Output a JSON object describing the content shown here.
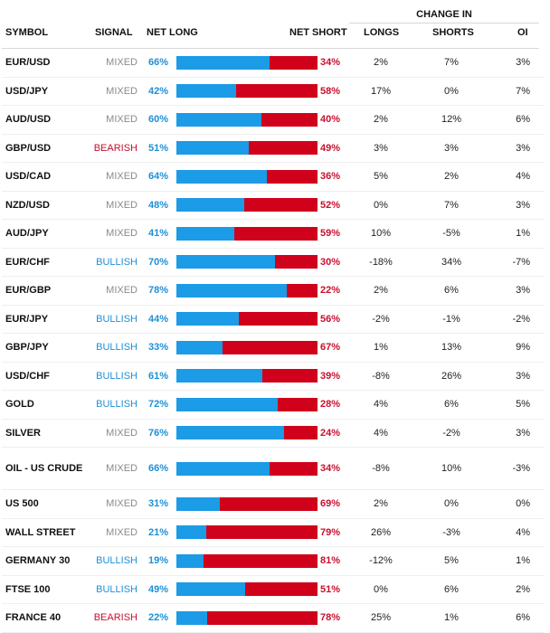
{
  "header": {
    "change_in": "CHANGE IN",
    "symbol": "SYMBOL",
    "signal": "SIGNAL",
    "net_long": "NET LONG",
    "net_short": "NET SHORT",
    "longs": "LONGS",
    "shorts": "SHORTS",
    "oi": "OI"
  },
  "colors": {
    "long_bar": "#1c9be6",
    "short_bar": "#d0021b",
    "bullish": "#1e90d6",
    "bearish": "#c8102e",
    "mixed": "#8a8a8a"
  },
  "rows": [
    {
      "symbol": "EUR/USD",
      "signal": "MIXED",
      "net_long": "66%",
      "net_short": "34%",
      "long_pct": 66,
      "longs": "2%",
      "shorts": "7%",
      "oi": "3%"
    },
    {
      "symbol": "USD/JPY",
      "signal": "MIXED",
      "net_long": "42%",
      "net_short": "58%",
      "long_pct": 42,
      "longs": "17%",
      "shorts": "0%",
      "oi": "7%"
    },
    {
      "symbol": "AUD/USD",
      "signal": "MIXED",
      "net_long": "60%",
      "net_short": "40%",
      "long_pct": 60,
      "longs": "2%",
      "shorts": "12%",
      "oi": "6%"
    },
    {
      "symbol": "GBP/USD",
      "signal": "BEARISH",
      "net_long": "51%",
      "net_short": "49%",
      "long_pct": 51,
      "longs": "3%",
      "shorts": "3%",
      "oi": "3%"
    },
    {
      "symbol": "USD/CAD",
      "signal": "MIXED",
      "net_long": "64%",
      "net_short": "36%",
      "long_pct": 64,
      "longs": "5%",
      "shorts": "2%",
      "oi": "4%"
    },
    {
      "symbol": "NZD/USD",
      "signal": "MIXED",
      "net_long": "48%",
      "net_short": "52%",
      "long_pct": 48,
      "longs": "0%",
      "shorts": "7%",
      "oi": "3%"
    },
    {
      "symbol": "AUD/JPY",
      "signal": "MIXED",
      "net_long": "41%",
      "net_short": "59%",
      "long_pct": 41,
      "longs": "10%",
      "shorts": "-5%",
      "oi": "1%"
    },
    {
      "symbol": "EUR/CHF",
      "signal": "BULLISH",
      "net_long": "70%",
      "net_short": "30%",
      "long_pct": 70,
      "longs": "-18%",
      "shorts": "34%",
      "oi": "-7%"
    },
    {
      "symbol": "EUR/GBP",
      "signal": "MIXED",
      "net_long": "78%",
      "net_short": "22%",
      "long_pct": 78,
      "longs": "2%",
      "shorts": "6%",
      "oi": "3%"
    },
    {
      "symbol": "EUR/JPY",
      "signal": "BULLISH",
      "net_long": "44%",
      "net_short": "56%",
      "long_pct": 44,
      "longs": "-2%",
      "shorts": "-1%",
      "oi": "-2%"
    },
    {
      "symbol": "GBP/JPY",
      "signal": "BULLISH",
      "net_long": "33%",
      "net_short": "67%",
      "long_pct": 33,
      "longs": "1%",
      "shorts": "13%",
      "oi": "9%"
    },
    {
      "symbol": "USD/CHF",
      "signal": "BULLISH",
      "net_long": "61%",
      "net_short": "39%",
      "long_pct": 61,
      "longs": "-8%",
      "shorts": "26%",
      "oi": "3%"
    },
    {
      "symbol": "GOLD",
      "signal": "BULLISH",
      "net_long": "72%",
      "net_short": "28%",
      "long_pct": 72,
      "longs": "4%",
      "shorts": "6%",
      "oi": "5%"
    },
    {
      "symbol": "SILVER",
      "signal": "MIXED",
      "net_long": "76%",
      "net_short": "24%",
      "long_pct": 76,
      "longs": "4%",
      "shorts": "-2%",
      "oi": "3%"
    },
    {
      "symbol": "OIL - US CRUDE",
      "signal": "MIXED",
      "net_long": "66%",
      "net_short": "34%",
      "long_pct": 66,
      "longs": "-8%",
      "shorts": "10%",
      "oi": "-3%"
    },
    {
      "symbol": "US 500",
      "signal": "MIXED",
      "net_long": "31%",
      "net_short": "69%",
      "long_pct": 31,
      "longs": "2%",
      "shorts": "0%",
      "oi": "0%"
    },
    {
      "symbol": "WALL STREET",
      "signal": "MIXED",
      "net_long": "21%",
      "net_short": "79%",
      "long_pct": 21,
      "longs": "26%",
      "shorts": "-3%",
      "oi": "4%"
    },
    {
      "symbol": "GERMANY 30",
      "signal": "BULLISH",
      "net_long": "19%",
      "net_short": "81%",
      "long_pct": 19,
      "longs": "-12%",
      "shorts": "5%",
      "oi": "1%"
    },
    {
      "symbol": "FTSE 100",
      "signal": "BULLISH",
      "net_long": "49%",
      "net_short": "51%",
      "long_pct": 49,
      "longs": "0%",
      "shorts": "6%",
      "oi": "2%"
    },
    {
      "symbol": "FRANCE 40",
      "signal": "BEARISH",
      "net_long": "22%",
      "net_short": "78%",
      "long_pct": 22,
      "longs": "25%",
      "shorts": "1%",
      "oi": "6%"
    }
  ]
}
